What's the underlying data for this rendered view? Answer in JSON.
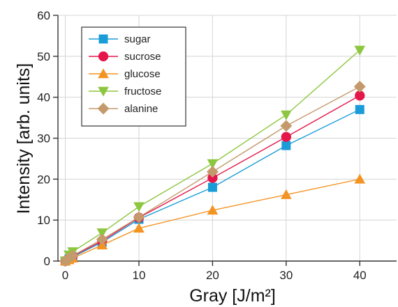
{
  "chart_data": {
    "type": "line",
    "xlabel": "Gray [J/m²]",
    "ylabel": "Intensity [arb. units]",
    "xlim": [
      -1,
      45
    ],
    "ylim": [
      0,
      60
    ],
    "xticks": [
      0,
      10,
      20,
      30,
      40
    ],
    "yticks": [
      0,
      10,
      20,
      30,
      40,
      50,
      60
    ],
    "grid": "vertical and horizontal at major ticks",
    "legend_position": "top-left",
    "x": [
      0,
      0.5,
      1,
      5,
      10,
      20,
      30,
      40
    ],
    "series": [
      {
        "name": "sugar",
        "color": "#1a9cd8",
        "marker": "square",
        "values": [
          0,
          0.5,
          1.0,
          4.6,
          10.2,
          18.0,
          28.2,
          37.0
        ]
      },
      {
        "name": "sucrose",
        "color": "#e4164a",
        "marker": "circle",
        "values": [
          0,
          0.6,
          1.2,
          4.9,
          10.6,
          20.3,
          30.3,
          40.4
        ]
      },
      {
        "name": "glucose",
        "color": "#f39422",
        "marker": "triangle-up",
        "values": [
          0,
          0.3,
          0.7,
          3.9,
          8.0,
          12.4,
          16.2,
          20.0
        ]
      },
      {
        "name": "fructose",
        "color": "#8dc63f",
        "marker": "triangle-down",
        "values": [
          0,
          1.5,
          2.3,
          6.9,
          13.3,
          23.8,
          35.7,
          51.5
        ]
      },
      {
        "name": "alanine",
        "color": "#c49a6c",
        "marker": "diamond",
        "values": [
          0,
          0.7,
          1.3,
          5.3,
          10.7,
          21.8,
          33.0,
          42.6
        ]
      }
    ]
  }
}
